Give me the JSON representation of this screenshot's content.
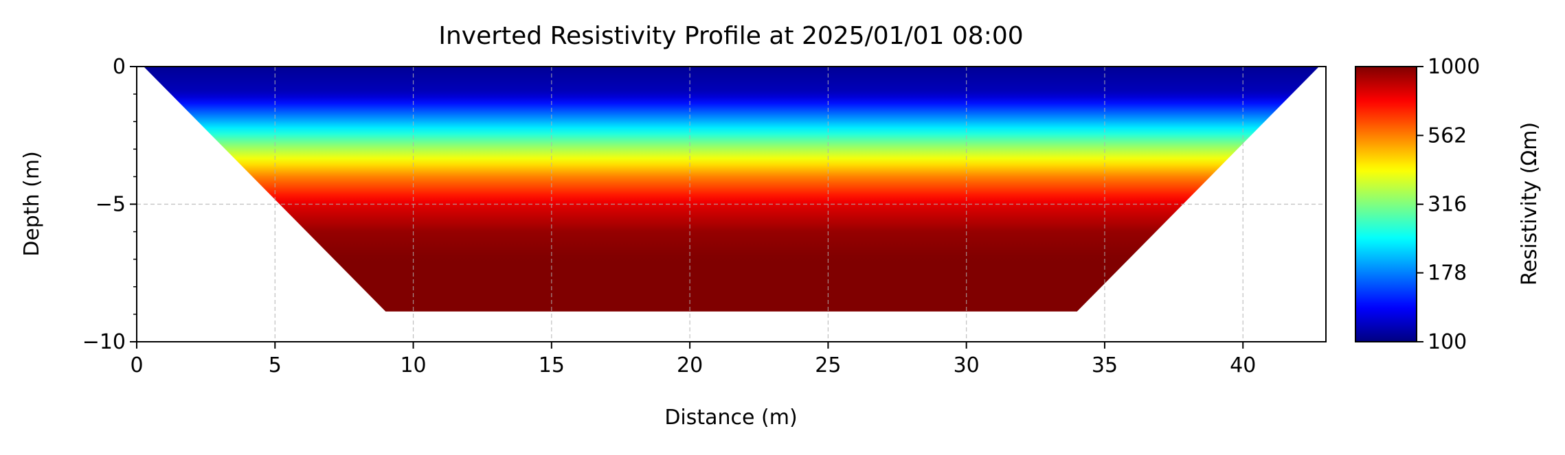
{
  "chart_data": {
    "type": "heatmap",
    "title": "Inverted Resistivity Profile at 2025/01/01 08:00",
    "xlabel": "Distance (m)",
    "ylabel": "Depth (m)",
    "xlim": [
      0,
      43
    ],
    "ylim": [
      -10,
      0
    ],
    "x_ticks": [
      0,
      5,
      10,
      15,
      20,
      25,
      30,
      35,
      40
    ],
    "y_ticks": [
      0,
      -5,
      -10
    ],
    "x_tick_labels": [
      "0",
      "5",
      "10",
      "15",
      "20",
      "25",
      "30",
      "35",
      "40"
    ],
    "y_tick_labels": [
      "0",
      "−5",
      "−10"
    ],
    "grid": true,
    "colormap": "jet",
    "log_scale_colorbar": true,
    "colorbar": {
      "label": "Resistivity (Ωm)",
      "range": [
        100,
        1000
      ],
      "ticks": [
        100,
        178,
        316,
        562,
        1000
      ],
      "tick_labels": [
        "100",
        "178",
        "316",
        "562",
        "1000"
      ]
    },
    "data_region": {
      "top_left_x": 0.25,
      "top_right_x": 42.75,
      "bottom_left_x": 9,
      "bottom_right_x": 34,
      "top_depth": 0,
      "bottom_depth": -8.9
    },
    "depth_profile": [
      {
        "depth": 0,
        "resistivity": 105
      },
      {
        "depth": -1,
        "resistivity": 115
      },
      {
        "depth": -2,
        "resistivity": 200
      },
      {
        "depth": -3,
        "resistivity": 350
      },
      {
        "depth": -4,
        "resistivity": 560
      },
      {
        "depth": -5,
        "resistivity": 800
      },
      {
        "depth": -6,
        "resistivity": 950
      },
      {
        "depth": -7,
        "resistivity": 1000
      },
      {
        "depth": -8.9,
        "resistivity": 1000
      }
    ]
  }
}
